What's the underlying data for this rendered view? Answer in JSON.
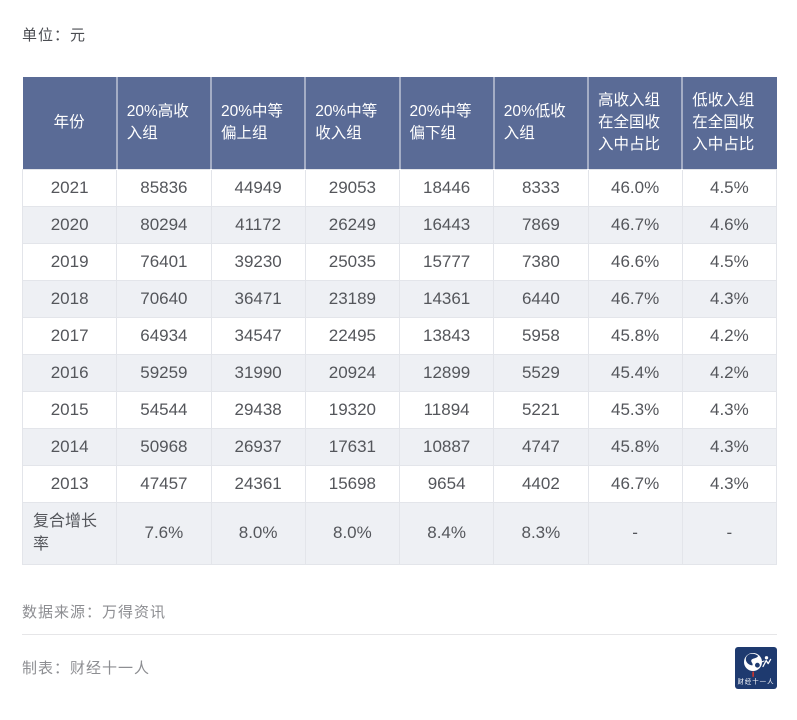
{
  "unit_label": "单位：元",
  "colors": {
    "header_bg": "#5a6b96",
    "row_stripe": "#eef0f4",
    "cell_border": "#e3e5ea",
    "body_text": "#54565b",
    "footer_text": "#8d8e92",
    "logo_bg": "#1e3a6f",
    "logo_accent_red": "#c23531"
  },
  "chart_data": {
    "type": "table",
    "title": "",
    "unit": "元",
    "columns": [
      "年份",
      "20%高收\n入组",
      "20%中等\n偏上组",
      "20%中等\n收入组",
      "20%中等\n偏下组",
      "20%低收\n入组",
      "高收入组\n在全国收\n入中占比",
      "低收入组\n在全国收\n入中占比"
    ],
    "rows": [
      [
        "2021",
        "85836",
        "44949",
        "29053",
        "18446",
        "8333",
        "46.0%",
        "4.5%"
      ],
      [
        "2020",
        "80294",
        "41172",
        "26249",
        "16443",
        "7869",
        "46.7%",
        "4.6%"
      ],
      [
        "2019",
        "76401",
        "39230",
        "25035",
        "15777",
        "7380",
        "46.6%",
        "4.5%"
      ],
      [
        "2018",
        "70640",
        "36471",
        "23189",
        "14361",
        "6440",
        "46.7%",
        "4.3%"
      ],
      [
        "2017",
        "64934",
        "34547",
        "22495",
        "13843",
        "5958",
        "45.8%",
        "4.2%"
      ],
      [
        "2016",
        "59259",
        "31990",
        "20924",
        "12899",
        "5529",
        "45.4%",
        "4.2%"
      ],
      [
        "2015",
        "54544",
        "29438",
        "19320",
        "11894",
        "5221",
        "45.3%",
        "4.3%"
      ],
      [
        "2014",
        "50968",
        "26937",
        "17631",
        "10887",
        "4747",
        "45.8%",
        "4.3%"
      ],
      [
        "2013",
        "47457",
        "24361",
        "15698",
        "9654",
        "4402",
        "46.7%",
        "4.3%"
      ],
      [
        "复合增长\n率",
        "7.6%",
        "8.0%",
        "8.0%",
        "8.4%",
        "8.3%",
        "-",
        "-"
      ]
    ]
  },
  "footer": {
    "source": "数据来源：万得资讯",
    "credit": "制表：财经十一人",
    "logo_text": "财经十一人"
  }
}
